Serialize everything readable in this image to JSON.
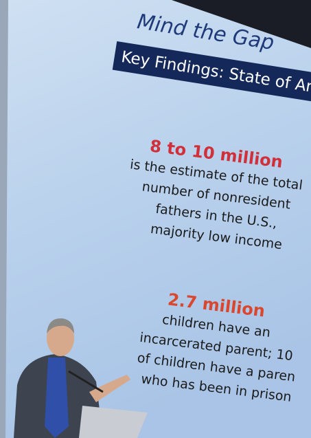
{
  "slide": {
    "title": "Mind the Gap",
    "banner": "Key Findings: State of An",
    "findings": [
      {
        "headline": "8 to 10 million",
        "lines": [
          "is the estimate of the total",
          "number of nonresident",
          "fathers in the U.S.,",
          "majority low income"
        ]
      },
      {
        "headline": "2.7 million",
        "lines": [
          "children have an",
          "incarcerated parent; 10",
          "of children have a paren",
          "who has been in prison"
        ]
      }
    ]
  }
}
